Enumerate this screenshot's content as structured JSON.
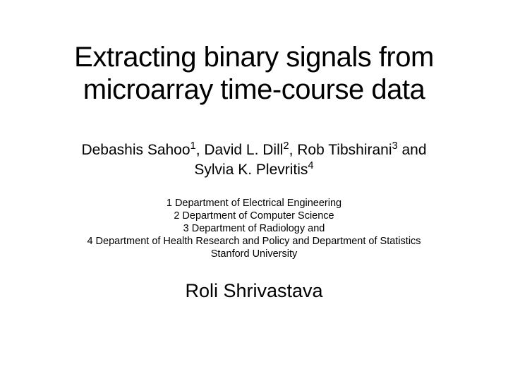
{
  "title_line1": "Extracting binary signals from",
  "title_line2": "microarray time-course data",
  "authors_html_line1": "Debashis Sahoo<sup>1</sup>, David L. Dill<sup>2</sup>,  Rob Tibshirani<sup>3</sup> and",
  "authors_html_line2": "Sylvia K. Plevritis<sup>4</sup>",
  "aff1": "1 Department of Electrical Engineering",
  "aff2": "2 Department of Computer Science",
  "aff3": "3 Department of Radiology and",
  "aff4": "4 Department of Health Research and Policy and Department of Statistics",
  "aff5": "Stanford University",
  "presenter": "Roli Shrivastava",
  "colors": {
    "background": "#ffffff",
    "text": "#000000"
  },
  "fontsize": {
    "title": 40,
    "authors": 21,
    "affiliations": 14.5,
    "presenter": 27
  }
}
